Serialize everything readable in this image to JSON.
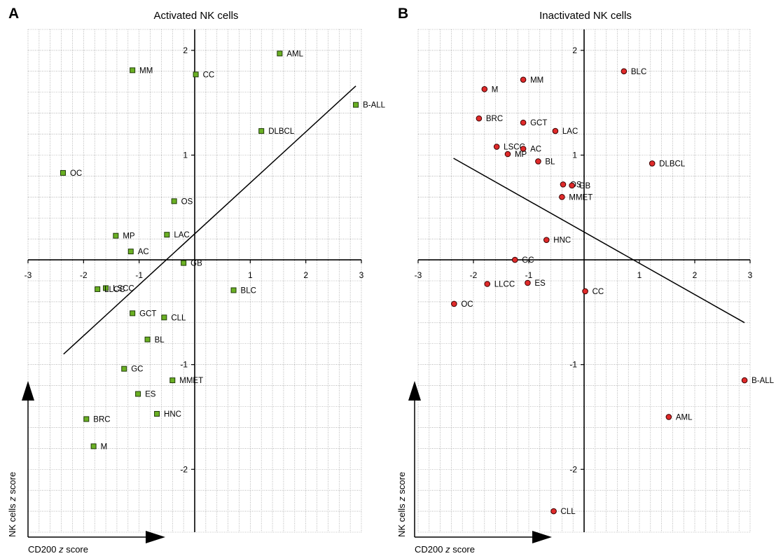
{
  "chart_data": [
    {
      "panel_letter": "A",
      "type": "scatter",
      "title": "Activated NK cells",
      "xlabel": "CD200 z score",
      "ylabel": "NK cells z score",
      "xlim": [
        -3,
        3
      ],
      "ylim": [
        -2.6,
        2.2
      ],
      "xticks": [
        -3,
        -2,
        -1,
        1,
        2,
        3
      ],
      "yticks": [
        2,
        1,
        -1,
        -2
      ],
      "grid": true,
      "marker": "square",
      "marker_color": "#6ab023",
      "points": [
        {
          "label": "AML",
          "x": 1.53,
          "y": 1.97
        },
        {
          "label": "MM",
          "x": -1.12,
          "y": 1.81
        },
        {
          "label": "CC",
          "x": 0.02,
          "y": 1.77
        },
        {
          "label": "B-ALL",
          "x": 2.9,
          "y": 1.48
        },
        {
          "label": "DLBCL",
          "x": 1.2,
          "y": 1.23
        },
        {
          "label": "OC",
          "x": -2.37,
          "y": 0.83
        },
        {
          "label": "OS",
          "x": -0.37,
          "y": 0.56
        },
        {
          "label": "MP",
          "x": -1.42,
          "y": 0.23
        },
        {
          "label": "LAC",
          "x": -0.5,
          "y": 0.24
        },
        {
          "label": "AC",
          "x": -1.15,
          "y": 0.08
        },
        {
          "label": "GB",
          "x": -0.2,
          "y": -0.03
        },
        {
          "label": "LSCC",
          "x": -1.6,
          "y": -0.27
        },
        {
          "label": "LLCC",
          "x": -1.75,
          "y": -0.28
        },
        {
          "label": "BLC",
          "x": 0.7,
          "y": -0.29
        },
        {
          "label": "GCT",
          "x": -1.12,
          "y": -0.51
        },
        {
          "label": "CLL",
          "x": -0.55,
          "y": -0.55
        },
        {
          "label": "BL",
          "x": -0.85,
          "y": -0.76
        },
        {
          "label": "GC",
          "x": -1.27,
          "y": -1.04
        },
        {
          "label": "MMET",
          "x": -0.4,
          "y": -1.15
        },
        {
          "label": "ES",
          "x": -1.02,
          "y": -1.28
        },
        {
          "label": "HNC",
          "x": -0.68,
          "y": -1.47
        },
        {
          "label": "BRC",
          "x": -1.95,
          "y": -1.52
        },
        {
          "label": "M",
          "x": -1.82,
          "y": -1.78
        }
      ],
      "regression_line": {
        "x": [
          -2.36,
          2.9
        ],
        "y": [
          -0.9,
          1.66
        ]
      }
    },
    {
      "panel_letter": "B",
      "type": "scatter",
      "title": "Inactivated NK cells",
      "xlabel": "CD200 z score",
      "ylabel": "NK cells z score",
      "xlim": [
        -3,
        3
      ],
      "ylim": [
        -2.6,
        2.2
      ],
      "xticks": [
        -3,
        -2,
        -1,
        1,
        2,
        3
      ],
      "yticks": [
        2,
        1,
        -1,
        -2
      ],
      "grid": true,
      "marker": "circle",
      "marker_color": "#e02a2a",
      "points": [
        {
          "label": "BLC",
          "x": 0.72,
          "y": 1.8
        },
        {
          "label": "MM",
          "x": -1.1,
          "y": 1.72
        },
        {
          "label": "M",
          "x": -1.8,
          "y": 1.63
        },
        {
          "label": "BRC",
          "x": -1.9,
          "y": 1.35
        },
        {
          "label": "GCT",
          "x": -1.1,
          "y": 1.31
        },
        {
          "label": "LAC",
          "x": -0.52,
          "y": 1.23
        },
        {
          "label": "LSCC",
          "x": -1.58,
          "y": 1.08
        },
        {
          "label": "AC",
          "x": -1.1,
          "y": 1.06
        },
        {
          "label": "MP",
          "x": -1.38,
          "y": 1.01
        },
        {
          "label": "BL",
          "x": -0.83,
          "y": 0.94
        },
        {
          "label": "DLBCL",
          "x": 1.23,
          "y": 0.92
        },
        {
          "label": "OS",
          "x": -0.38,
          "y": 0.72
        },
        {
          "label": "GB",
          "x": -0.22,
          "y": 0.71
        },
        {
          "label": "MMET",
          "x": -0.4,
          "y": 0.6
        },
        {
          "label": "HNC",
          "x": -0.68,
          "y": 0.19
        },
        {
          "label": "GC",
          "x": -1.25,
          "y": 0.0
        },
        {
          "label": "ES",
          "x": -1.02,
          "y": -0.22
        },
        {
          "label": "LLCC",
          "x": -1.75,
          "y": -0.23
        },
        {
          "label": "CC",
          "x": 0.02,
          "y": -0.3
        },
        {
          "label": "OC",
          "x": -2.35,
          "y": -0.42
        },
        {
          "label": "B-ALL",
          "x": 2.9,
          "y": -1.15
        },
        {
          "label": "AML",
          "x": 1.53,
          "y": -1.5
        },
        {
          "label": "CLL",
          "x": -0.55,
          "y": -2.4
        }
      ],
      "regression_line": {
        "x": [
          -2.36,
          2.9
        ],
        "y": [
          0.97,
          -0.6
        ]
      }
    }
  ]
}
